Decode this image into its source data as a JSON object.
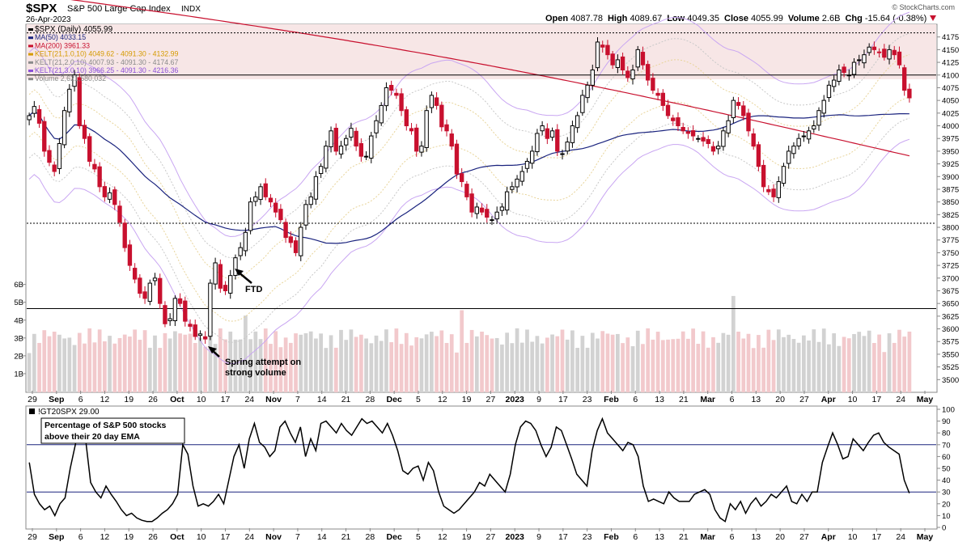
{
  "header": {
    "symbol": "$SPX",
    "name": "S&P 500 Large Cap Index",
    "exchange": "INDX",
    "date": "26-Apr-2023",
    "brand": "© StockCharts.com",
    "ohlc": [
      {
        "label": "Open",
        "value": "4087.78"
      },
      {
        "label": "High",
        "value": "4089.67"
      },
      {
        "label": "Low",
        "value": "4049.35"
      },
      {
        "label": "Close",
        "value": "4055.99"
      },
      {
        "label": "Volume",
        "value": "2.6B"
      },
      {
        "label": "Chg",
        "value": "-15.64 (-0.38%)"
      }
    ]
  },
  "legend": [
    {
      "text": "$SPX (Daily) 4055.99",
      "color": "#000000",
      "icon": "candle-icon"
    },
    {
      "text": "MA(50) 4033.15",
      "color": "#1a237e",
      "icon": "line-icon"
    },
    {
      "text": "MA(200) 3961.33",
      "color": "#c8102e",
      "icon": "line-icon"
    },
    {
      "text": "KELT(21,1.0,10) 4049.62 - 4091.30 - 4132.99",
      "color": "#d49a00",
      "icon": "line-icon"
    },
    {
      "text": "KELT(21,2.0,10) 4007.93 - 4091.30 - 4174.67",
      "color": "#8a8a8a",
      "icon": "line-icon"
    },
    {
      "text": "KELT(21,3.0,10) 3966.25 - 4091.30 - 4216.36",
      "color": "#8a4fd8",
      "icon": "line-icon"
    },
    {
      "text": "Volume 2,621,580,032",
      "color": "#888888",
      "icon": "bar-icon"
    }
  ],
  "annotations": {
    "ftd": "FTD",
    "spring_line1": "Spring attempt on",
    "spring_line2": "strong volume"
  },
  "indicator": {
    "title": "!GT20SPX 29.00",
    "box_line1": "Percentage of S&P 500 stocks",
    "box_line2": "above their 20 day EMA"
  },
  "chart_data": [
    {
      "type": "candlestick",
      "title": "$SPX S&P 500 Large Cap Index INDX",
      "ylim": [
        3475,
        4200
      ],
      "y_ticks": [
        "3500",
        "3525",
        "3550",
        "3575",
        "3600",
        "3625",
        "3650",
        "3675",
        "3700",
        "3725",
        "3750",
        "3775",
        "3800",
        "3825",
        "3850",
        "3875",
        "3900",
        "3925",
        "3950",
        "3975",
        "4000",
        "4025",
        "4050",
        "4075",
        "4100",
        "4125",
        "4150",
        "4175"
      ],
      "volume_ticks": [
        "1B",
        "2B",
        "3B",
        "4B",
        "5B",
        "6B"
      ],
      "x_ticks": [
        "29",
        "Sep",
        "6",
        "12",
        "19",
        "26",
        "Oct",
        "10",
        "17",
        "24",
        "Nov",
        "7",
        "14",
        "21",
        "28",
        "Dec",
        "5",
        "12",
        "19",
        "27",
        "2023",
        "9",
        "17",
        "23",
        "Feb",
        "6",
        "13",
        "21",
        "Mar",
        "6",
        "13",
        "20",
        "27",
        "Apr",
        "10",
        "17",
        "24",
        "May"
      ],
      "horizontal_levels": [
        4183,
        4100,
        3808,
        3640
      ],
      "close": [
        4020,
        4038,
        4005,
        3950,
        3928,
        3910,
        3965,
        4030,
        4072,
        4100,
        4000,
        3975,
        3930,
        3915,
        3880,
        3860,
        3868,
        3845,
        3810,
        3760,
        3725,
        3698,
        3670,
        3660,
        3690,
        3700,
        3650,
        3610,
        3620,
        3660,
        3650,
        3615,
        3605,
        3585,
        3590,
        3580,
        3690,
        3730,
        3680,
        3675,
        3705,
        3740,
        3760,
        3790,
        3850,
        3860,
        3880,
        3860,
        3850,
        3830,
        3815,
        3780,
        3770,
        3750,
        3800,
        3845,
        3860,
        3900,
        3920,
        3960,
        3990,
        3950,
        3960,
        3975,
        3995,
        3960,
        3940,
        3940,
        3980,
        4010,
        4040,
        4075,
        4070,
        4060,
        4030,
        4000,
        3990,
        3950,
        3960,
        4030,
        4060,
        4040,
        3998,
        3990,
        3960,
        3905,
        3890,
        3860,
        3830,
        3840,
        3830,
        3820,
        3815,
        3830,
        3840,
        3870,
        3880,
        3895,
        3910,
        3930,
        3950,
        3985,
        4000,
        3975,
        3990,
        3950,
        3945,
        3968,
        4000,
        4020,
        4060,
        4080,
        4110,
        4165,
        4155,
        4140,
        4120,
        4130,
        4110,
        4095,
        4110,
        4150,
        4120,
        4090,
        4070,
        4060,
        4040,
        4020,
        4010,
        4000,
        3990,
        3985,
        3980,
        3975,
        3970,
        3965,
        3950,
        3960,
        3990,
        4010,
        4050,
        4040,
        4020,
        3990,
        3960,
        3920,
        3880,
        3870,
        3860,
        3890,
        3920,
        3950,
        3960,
        3975,
        3980,
        3990,
        4000,
        4030,
        4050,
        4080,
        4090,
        4110,
        4105,
        4100,
        4125,
        4130,
        4140,
        4155,
        4150,
        4145,
        4135,
        4150,
        4140,
        4120,
        4070,
        4055
      ],
      "gt20spx": [
        55,
        28,
        20,
        15,
        18,
        10,
        20,
        25,
        50,
        70,
        90,
        75,
        38,
        30,
        25,
        35,
        28,
        22,
        15,
        10,
        12,
        8,
        6,
        5,
        5,
        8,
        12,
        15,
        20,
        28,
        70,
        62,
        35,
        18,
        20,
        18,
        22,
        28,
        20,
        40,
        60,
        70,
        50,
        75,
        88,
        72,
        68,
        60,
        65,
        85,
        90,
        80,
        72,
        85,
        60,
        75,
        65,
        88,
        90,
        85,
        80,
        88,
        82,
        78,
        85,
        92,
        88,
        90,
        85,
        80,
        88,
        78,
        65,
        48,
        45,
        50,
        52,
        40,
        55,
        48,
        30,
        18,
        15,
        12,
        15,
        20,
        25,
        30,
        38,
        35,
        45,
        40,
        35,
        30,
        45,
        70,
        85,
        90,
        88,
        82,
        70,
        60,
        68,
        85,
        82,
        70,
        58,
        45,
        40,
        35,
        65,
        82,
        92,
        80,
        75,
        70,
        65,
        72,
        70,
        60,
        35,
        22,
        24,
        22,
        20,
        30,
        25,
        22,
        22,
        22,
        28,
        30,
        32,
        28,
        15,
        8,
        5,
        20,
        15,
        22,
        12,
        20,
        25,
        18,
        22,
        28,
        25,
        30,
        35,
        22,
        20,
        28,
        22,
        30,
        30,
        55,
        68,
        80,
        70,
        58,
        60,
        75,
        70,
        65,
        72,
        78,
        80,
        72,
        68,
        65,
        62,
        40,
        29
      ]
    }
  ]
}
